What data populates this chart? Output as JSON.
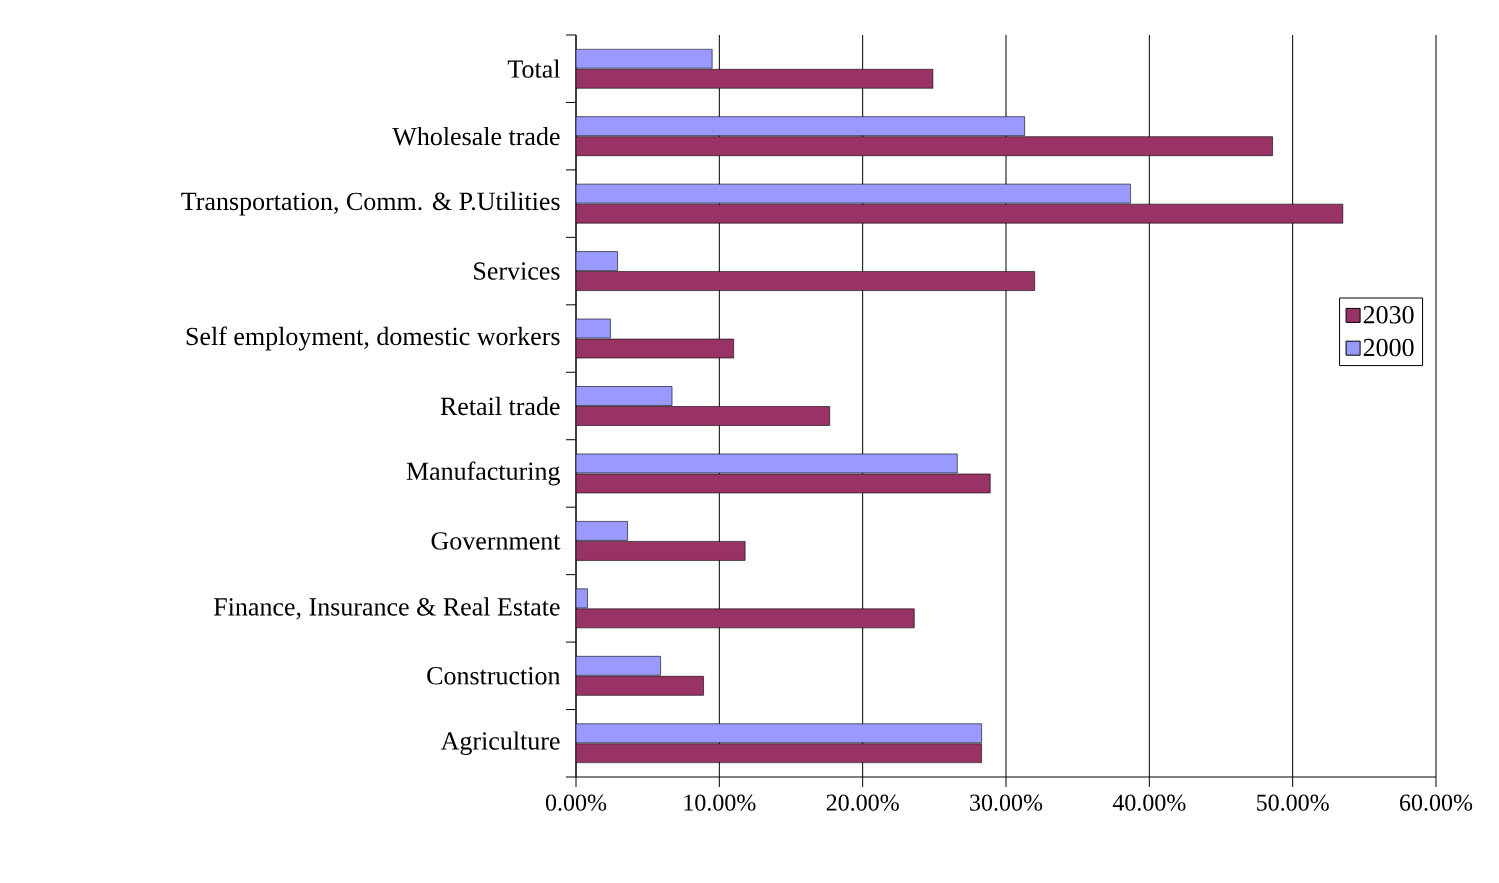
{
  "chart_data": {
    "type": "bar",
    "orientation": "horizontal",
    "categories": [
      "Total",
      "Wholesale trade",
      "Transportation, Comm. & P.Utilities",
      "Services",
      "Self employment, domestic workers",
      "Retail trade",
      "Manufacturing",
      "Government",
      "Finance, Insurance & Real Estate",
      "Construction",
      "Agriculture"
    ],
    "series": [
      {
        "name": "2030",
        "color": "#993366",
        "values": [
          24.9,
          48.6,
          53.5,
          32.0,
          11.0,
          17.7,
          28.9,
          11.8,
          23.6,
          8.9,
          28.3
        ]
      },
      {
        "name": "2000",
        "color": "#9999ff",
        "values": [
          9.5,
          31.3,
          38.7,
          2.9,
          2.4,
          6.7,
          26.6,
          3.6,
          0.8,
          5.9,
          28.3
        ]
      }
    ],
    "xlim": [
      0,
      60
    ],
    "xticks": [
      {
        "value": 0,
        "label": "0.00%"
      },
      {
        "value": 10,
        "label": "10.00%"
      },
      {
        "value": 20,
        "label": "20.00%"
      },
      {
        "value": 30,
        "label": "30.00%"
      },
      {
        "value": 40,
        "label": "40.00%"
      },
      {
        "value": 50,
        "label": "50.00%"
      },
      {
        "value": 60,
        "label": "60.00%"
      }
    ],
    "grid": "x",
    "legend": "right"
  }
}
